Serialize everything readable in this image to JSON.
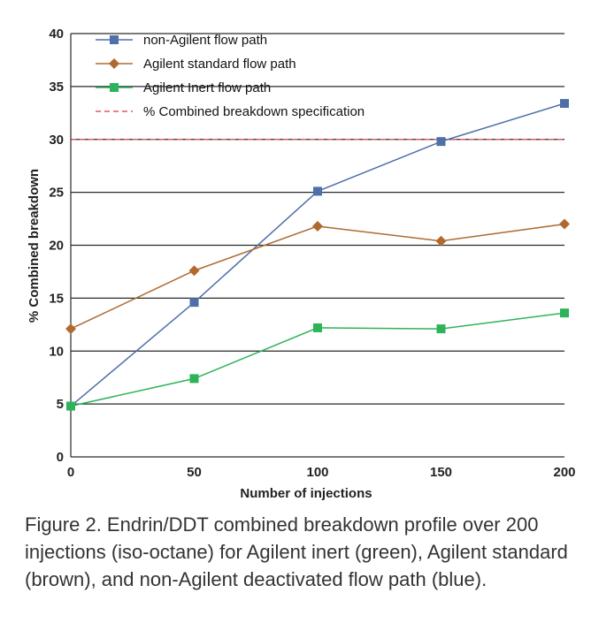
{
  "chart_data": {
    "type": "line",
    "xlabel": "Number of injections",
    "ylabel": "% Combined breakdown",
    "xlim": [
      0,
      200
    ],
    "ylim": [
      0,
      40
    ],
    "x_ticks": [
      "0",
      "50",
      "100",
      "150",
      "200"
    ],
    "y_ticks": [
      "0",
      "5",
      "10",
      "15",
      "20",
      "25",
      "30",
      "35",
      "40"
    ],
    "grid": "horizontal",
    "legend_position": "top-left",
    "series": [
      {
        "name": "non-Agilent flow path",
        "color": "#4f6fa8",
        "marker": "square",
        "x": [
          0,
          50,
          100,
          150,
          200
        ],
        "values": [
          4.8,
          14.6,
          25.1,
          29.8,
          33.4
        ]
      },
      {
        "name": "Agilent standard flow path",
        "color": "#b06a2f",
        "marker": "diamond",
        "x": [
          0,
          50,
          100,
          150,
          200
        ],
        "values": [
          12.1,
          17.6,
          21.8,
          20.4,
          22.0
        ]
      },
      {
        "name": "Agilent Inert flow path",
        "color": "#2db35a",
        "marker": "square",
        "x": [
          0,
          50,
          100,
          150,
          200
        ],
        "values": [
          4.8,
          7.4,
          12.2,
          12.1,
          13.6
        ]
      }
    ],
    "reference_line": {
      "name": "% Combined breakdown specification",
      "value": 30,
      "color": "#e05a5a",
      "style": "dashed"
    }
  },
  "caption": "Figure 2. Endrin/DDT combined breakdown profile over 200 injections (iso-octane) for Agilent inert (green), Agilent standard (brown), and non-Agilent deactivated flow path (blue)."
}
